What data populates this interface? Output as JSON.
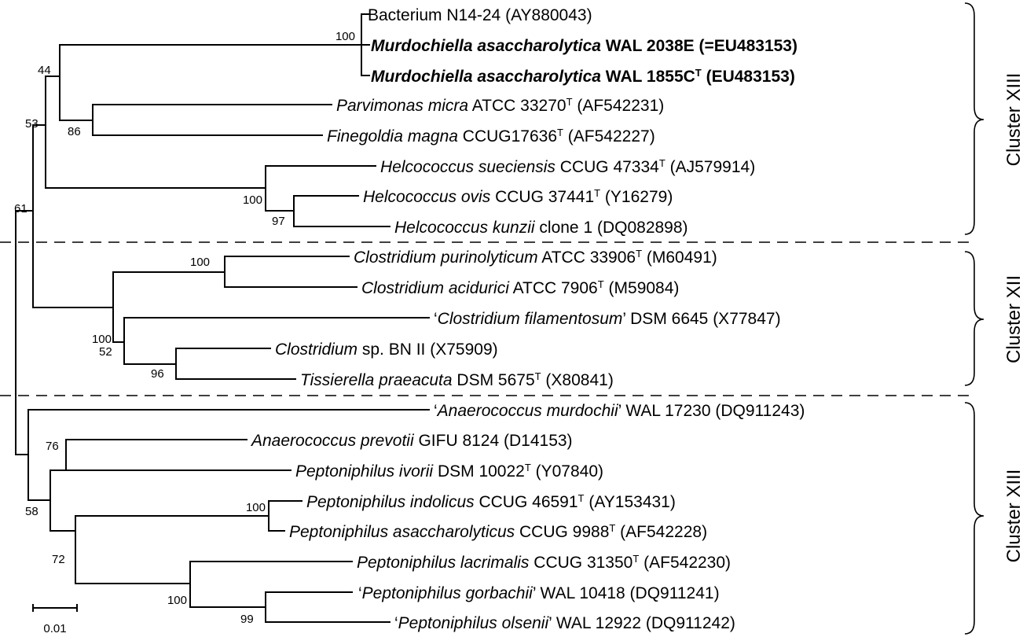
{
  "taxa": [
    {
      "parts": [
        {
          "t": "Bacterium N14-24 (AY880043)"
        }
      ]
    },
    {
      "parts": [
        {
          "t": "Murdochiella asaccharolytica",
          "i": true,
          "b": true
        },
        {
          "t": " WAL 2038E (=EU483153)",
          "b": true
        }
      ]
    },
    {
      "parts": [
        {
          "t": "Murdochiella asaccharolytica",
          "i": true,
          "b": true
        },
        {
          "t": " WAL 1855C",
          "b": true
        },
        {
          "t": "T",
          "sup": true,
          "b": true
        },
        {
          "t": " (EU483153)",
          "b": true
        }
      ]
    },
    {
      "parts": [
        {
          "t": "Parvimonas micra",
          "i": true
        },
        {
          "t": " ATCC 33270"
        },
        {
          "t": "T",
          "sup": true
        },
        {
          "t": " (AF542231)"
        }
      ]
    },
    {
      "parts": [
        {
          "t": "Finegoldia magna",
          "i": true
        },
        {
          "t": " CCUG17636"
        },
        {
          "t": "T",
          "sup": true
        },
        {
          "t": " (AF542227)"
        }
      ]
    },
    {
      "parts": [
        {
          "t": "Helcococcus sueciensis",
          "i": true
        },
        {
          "t": " CCUG 47334"
        },
        {
          "t": "T",
          "sup": true
        },
        {
          "t": " (AJ579914)"
        }
      ]
    },
    {
      "parts": [
        {
          "t": "Helcococcus ovis",
          "i": true
        },
        {
          "t": " CCUG 37441"
        },
        {
          "t": "T",
          "sup": true
        },
        {
          "t": " (Y16279)"
        }
      ]
    },
    {
      "parts": [
        {
          "t": "Helcococcus kunzii",
          "i": true
        },
        {
          "t": " clone 1 (DQ082898)"
        }
      ]
    },
    {
      "parts": [
        {
          "t": "Clostridium purinolyticum",
          "i": true
        },
        {
          "t": " ATCC 33906"
        },
        {
          "t": "T",
          "sup": true
        },
        {
          "t": " (M60491)"
        }
      ]
    },
    {
      "parts": [
        {
          "t": "Clostridium acidurici",
          "i": true
        },
        {
          "t": " ATCC 7906"
        },
        {
          "t": "T",
          "sup": true
        },
        {
          "t": " (M59084)"
        }
      ]
    },
    {
      "parts": [
        {
          "t": "‘"
        },
        {
          "t": "Clostridium filamentosum",
          "i": true
        },
        {
          "t": "’ DSM 6645 (X77847)"
        }
      ]
    },
    {
      "parts": [
        {
          "t": "Clostridium",
          "i": true
        },
        {
          "t": " sp. BN II (X75909)"
        }
      ]
    },
    {
      "parts": [
        {
          "t": "Tissierella praeacuta",
          "i": true
        },
        {
          "t": " DSM 5675"
        },
        {
          "t": "T",
          "sup": true
        },
        {
          "t": " (X80841)"
        }
      ]
    },
    {
      "parts": [
        {
          "t": "‘"
        },
        {
          "t": "Anaerococcus murdochii",
          "i": true
        },
        {
          "t": "’ WAL 17230 (DQ911243)"
        }
      ]
    },
    {
      "parts": [
        {
          "t": "Anaerococcus prevotii",
          "i": true
        },
        {
          "t": " GIFU 8124 (D14153)"
        }
      ]
    },
    {
      "parts": [
        {
          "t": "Peptoniphilus ivorii",
          "i": true
        },
        {
          "t": " DSM 10022"
        },
        {
          "t": "T",
          "sup": true
        },
        {
          "t": " (Y07840)"
        }
      ]
    },
    {
      "parts": [
        {
          "t": "Peptoniphilus indolicus",
          "i": true
        },
        {
          "t": " CCUG 46591"
        },
        {
          "t": "T",
          "sup": true
        },
        {
          "t": " (AY153431)"
        }
      ]
    },
    {
      "parts": [
        {
          "t": "Peptoniphilus asaccharolyticus",
          "i": true
        },
        {
          "t": " CCUG 9988"
        },
        {
          "t": "T",
          "sup": true
        },
        {
          "t": " (AF542228)"
        }
      ]
    },
    {
      "parts": [
        {
          "t": "Peptoniphilus lacrimalis",
          "i": true
        },
        {
          "t": " CCUG 31350"
        },
        {
          "t": "T",
          "sup": true
        },
        {
          "t": " (AF542230)"
        }
      ]
    },
    {
      "parts": [
        {
          "t": "‘"
        },
        {
          "t": "Peptoniphilus gorbachii",
          "i": true
        },
        {
          "t": "’ WAL 10418 (DQ911241)"
        }
      ]
    },
    {
      "parts": [
        {
          "t": "‘"
        },
        {
          "t": "Peptoniphilus olsenii",
          "i": true
        },
        {
          "t": "’ WAL 12922 (DQ911242)"
        }
      ]
    }
  ],
  "bootstrap": [
    "100",
    "44",
    "86",
    "53",
    "100",
    "97",
    "61",
    "100",
    "100",
    "52",
    "96",
    "76",
    "58",
    "100",
    "72",
    "100",
    "99"
  ],
  "clusters": [
    "Cluster XIII",
    "Cluster XII",
    "Cluster XIII"
  ],
  "scale_bar": {
    "label": "0.01",
    "value": 0.01
  }
}
